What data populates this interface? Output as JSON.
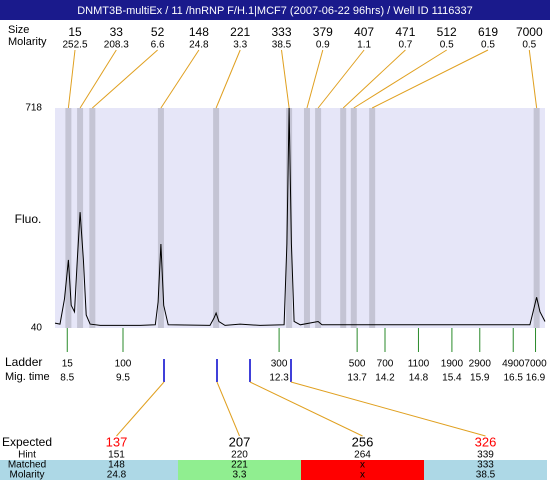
{
  "title": "DNMT3B-multiEx / 11 /hnRNP F/H.1|MCF7 (2007-06-22 96hrs) / Well ID 1116337",
  "peaks": {
    "size_label": "Size",
    "molarity_label": "Molarity",
    "items": [
      {
        "size": 15,
        "molarity": 252.5,
        "time": 8.52
      },
      {
        "size": 33,
        "molarity": 208.3,
        "time": 8.73
      },
      {
        "size": 52,
        "molarity": 6.6,
        "time": 8.95
      },
      {
        "size": 148,
        "molarity": 24.8,
        "time": 10.18
      },
      {
        "size": 221,
        "molarity": 3.3,
        "time": 11.17
      },
      {
        "size": 333,
        "molarity": 38.5,
        "time": 12.48
      },
      {
        "size": 379,
        "molarity": 0.9,
        "time": 12.8
      },
      {
        "size": 407,
        "molarity": 1.1,
        "time": 13.0
      },
      {
        "size": 471,
        "molarity": 0.7,
        "time": 13.45
      },
      {
        "size": 512,
        "molarity": 0.5,
        "time": 13.64
      },
      {
        "size": 619,
        "molarity": 0.5,
        "time": 13.97
      },
      {
        "size": 7000,
        "molarity": 0.5,
        "time": 16.92
      }
    ]
  },
  "chart_data": {
    "type": "line",
    "y_label": "Fluo.",
    "color": "#000000",
    "x": [
      8.28,
      8.37,
      8.45,
      8.52,
      8.57,
      8.63,
      8.68,
      8.73,
      8.79,
      8.84,
      8.91,
      9.09,
      9.81,
      10.08,
      10.13,
      10.18,
      10.23,
      10.31,
      11.06,
      11.13,
      11.17,
      11.22,
      11.33,
      11.6,
      11.96,
      12.39,
      12.44,
      12.48,
      12.52,
      12.57,
      12.68,
      13.0,
      13.07,
      14.47,
      16.8,
      16.87,
      16.92,
      16.98,
      17.07
    ],
    "values": [
      55,
      52,
      130,
      250,
      110,
      90,
      250,
      397,
      250,
      80,
      52,
      48,
      48,
      50,
      120,
      299,
      110,
      50,
      48,
      70,
      86,
      60,
      48,
      52,
      48,
      50,
      300,
      718,
      300,
      60,
      50,
      60,
      50,
      50,
      50,
      100,
      135,
      90,
      60
    ],
    "xlim": [
      8.28,
      17.07
    ],
    "ylim": [
      40,
      718
    ],
    "yticks": [
      40,
      718
    ]
  },
  "ladder": {
    "label": "Ladder",
    "time_label": "Mig. time",
    "items": [
      {
        "size": 15,
        "time": 8.5
      },
      {
        "size": 100,
        "time": 9.5
      },
      {
        "size": 300,
        "time": 12.3
      },
      {
        "size": 500,
        "time": 13.7
      },
      {
        "size": 700,
        "time": 14.2
      },
      {
        "size": 1100,
        "time": 14.8
      },
      {
        "size": 1900,
        "time": 15.4
      },
      {
        "size": 2900,
        "time": 15.9
      },
      {
        "size": 4900,
        "time": 16.5
      },
      {
        "size": 7000,
        "time": 16.9
      }
    ]
  },
  "expected": {
    "label": "Expected",
    "hint_label": "Hint",
    "matched_label": "Matched",
    "molarity_label": "Molarity",
    "items": [
      {
        "expected": 137,
        "color": "#ff0000",
        "hint": 151,
        "matched": 148,
        "molarity": 24.8,
        "fill": "#add8e6"
      },
      {
        "expected": 207,
        "color": "#000000",
        "hint": 220,
        "matched": 221,
        "molarity": 3.3,
        "fill": "#90ee90"
      },
      {
        "expected": 256,
        "color": "#000000",
        "hint": 264,
        "matched": "x",
        "molarity": "x",
        "fill": "#ff0000"
      },
      {
        "expected": 326,
        "color": "#ff0000",
        "hint": 339,
        "matched": 333,
        "molarity": 38.5,
        "fill": "#add8e6"
      }
    ]
  }
}
